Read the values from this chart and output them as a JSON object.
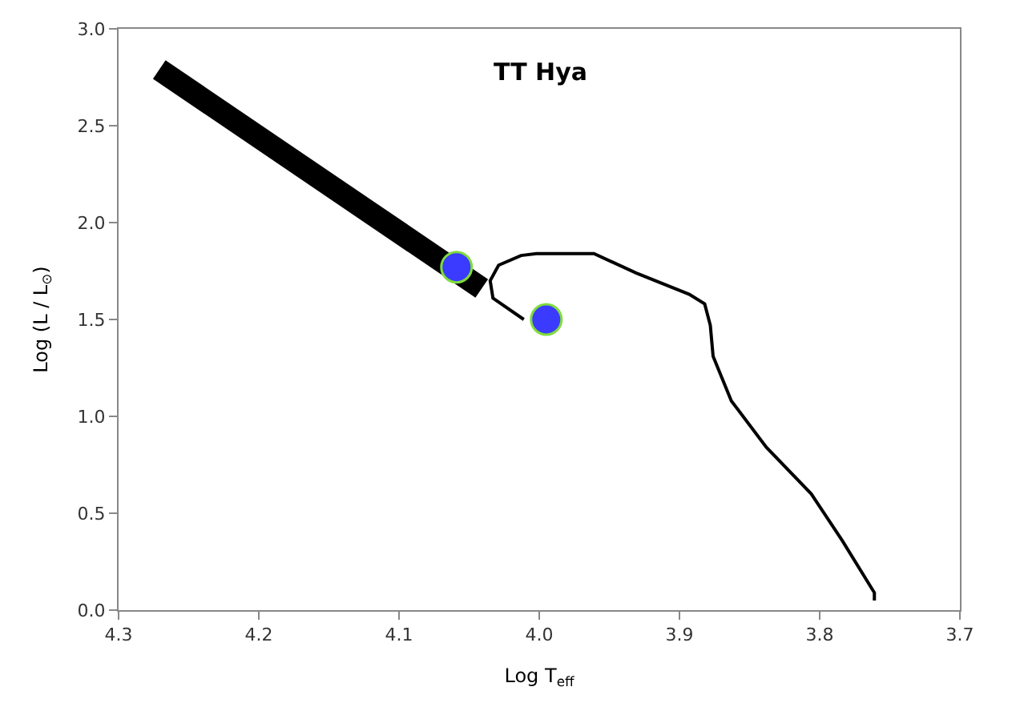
{
  "chart_data": {
    "type": "line",
    "title": "TT Hya",
    "xlabel": "Log T$_{eff}$",
    "ylabel": "Log (L / L$_{⊙}$)",
    "xlim": [
      4.3,
      3.7
    ],
    "xticks": [
      {
        "value": 4.3,
        "label": "4.3"
      },
      {
        "value": 4.2,
        "label": "4.2"
      },
      {
        "value": 4.1,
        "label": "4.1"
      },
      {
        "value": 4.0,
        "label": "4.0"
      },
      {
        "value": 3.9,
        "label": "3.9"
      },
      {
        "value": 3.8,
        "label": "3.8"
      },
      {
        "value": 3.7,
        "label": "3.7"
      }
    ],
    "ylim": [
      0,
      3.0
    ],
    "yticks": [
      {
        "value": 0,
        "label": "0.0"
      },
      {
        "value": 0.5,
        "label": "0.5"
      },
      {
        "value": 1.0,
        "label": "1.0"
      },
      {
        "value": 1.5,
        "label": "1.5"
      },
      {
        "value": 2.0,
        "label": "2.0"
      },
      {
        "value": 2.5,
        "label": "2.5"
      },
      {
        "value": 3.0,
        "label": "3.0"
      }
    ],
    "series": [
      {
        "color": "#000000",
        "x": [
          4.271,
          4.041
        ],
        "values": [
          2.79,
          1.66
        ]
      },
      {
        "color": "#000000",
        "x": [
          4.011,
          4.033,
          4.035,
          4.029,
          4.013,
          4.002,
          3.961,
          3.931,
          3.893,
          3.882,
          3.878,
          3.876,
          3.863,
          3.838,
          3.806,
          3.784,
          3.761,
          3.761
        ],
        "values": [
          1.5,
          1.61,
          1.7,
          1.78,
          1.83,
          1.84,
          1.84,
          1.74,
          1.63,
          1.58,
          1.47,
          1.31,
          1.08,
          0.84,
          0.6,
          0.36,
          0.09,
          0.05
        ]
      },
      {
        "type": "scatter",
        "color": "#3b3bff",
        "marker": "circle",
        "x": [
          4.059,
          3.995
        ],
        "values": [
          1.77,
          1.5
        ]
      }
    ]
  }
}
